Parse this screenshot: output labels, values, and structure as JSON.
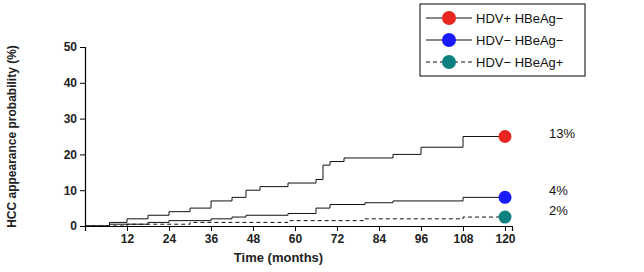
{
  "chart_data": {
    "type": "line",
    "x_label": "Time (months)",
    "y_label": "HCC appearance probability (%)",
    "x": [
      0,
      7,
      12,
      18,
      24,
      30,
      36,
      42,
      46,
      50,
      58,
      66,
      68,
      70,
      74,
      80,
      88,
      96,
      108,
      114,
      120
    ],
    "series": [
      {
        "name": "HDV+ HBeAg−",
        "color": "#e8251f",
        "marker": "circle",
        "line_style": "solid",
        "values": [
          0,
          1,
          2,
          3,
          4,
          5,
          7,
          8,
          10,
          11,
          12,
          13,
          17,
          18,
          19,
          19,
          20,
          22,
          25,
          25,
          25
        ]
      },
      {
        "name": "HDV− HBeAg−",
        "color": "#1a1aff",
        "marker": "circle",
        "line_style": "solid",
        "values": [
          0,
          0.5,
          0.5,
          1,
          1.5,
          1.5,
          2,
          2.5,
          3,
          3,
          3.5,
          5,
          5,
          6,
          6,
          6.5,
          7,
          7,
          8,
          8,
          8
        ]
      },
      {
        "name": "HDV− HBeAg+",
        "color": "#0f8080",
        "marker": "circle",
        "line_style": "dashed",
        "values": [
          0,
          0,
          0.5,
          0.5,
          0.5,
          1,
          1,
          1,
          1,
          1,
          1.5,
          1.5,
          1.5,
          1.5,
          1.5,
          2,
          2,
          2,
          2.5,
          2.5,
          2.5
        ]
      }
    ],
    "annotations": [
      "13%",
      "4%",
      "2%"
    ],
    "xlim": [
      0,
      122
    ],
    "xticks": [
      12,
      24,
      36,
      48,
      60,
      72,
      84,
      96,
      108,
      120
    ],
    "ylim": [
      0,
      50
    ],
    "yticks": [
      0,
      10,
      20,
      30,
      40,
      50
    ],
    "grid": false,
    "legend": "upper right"
  }
}
